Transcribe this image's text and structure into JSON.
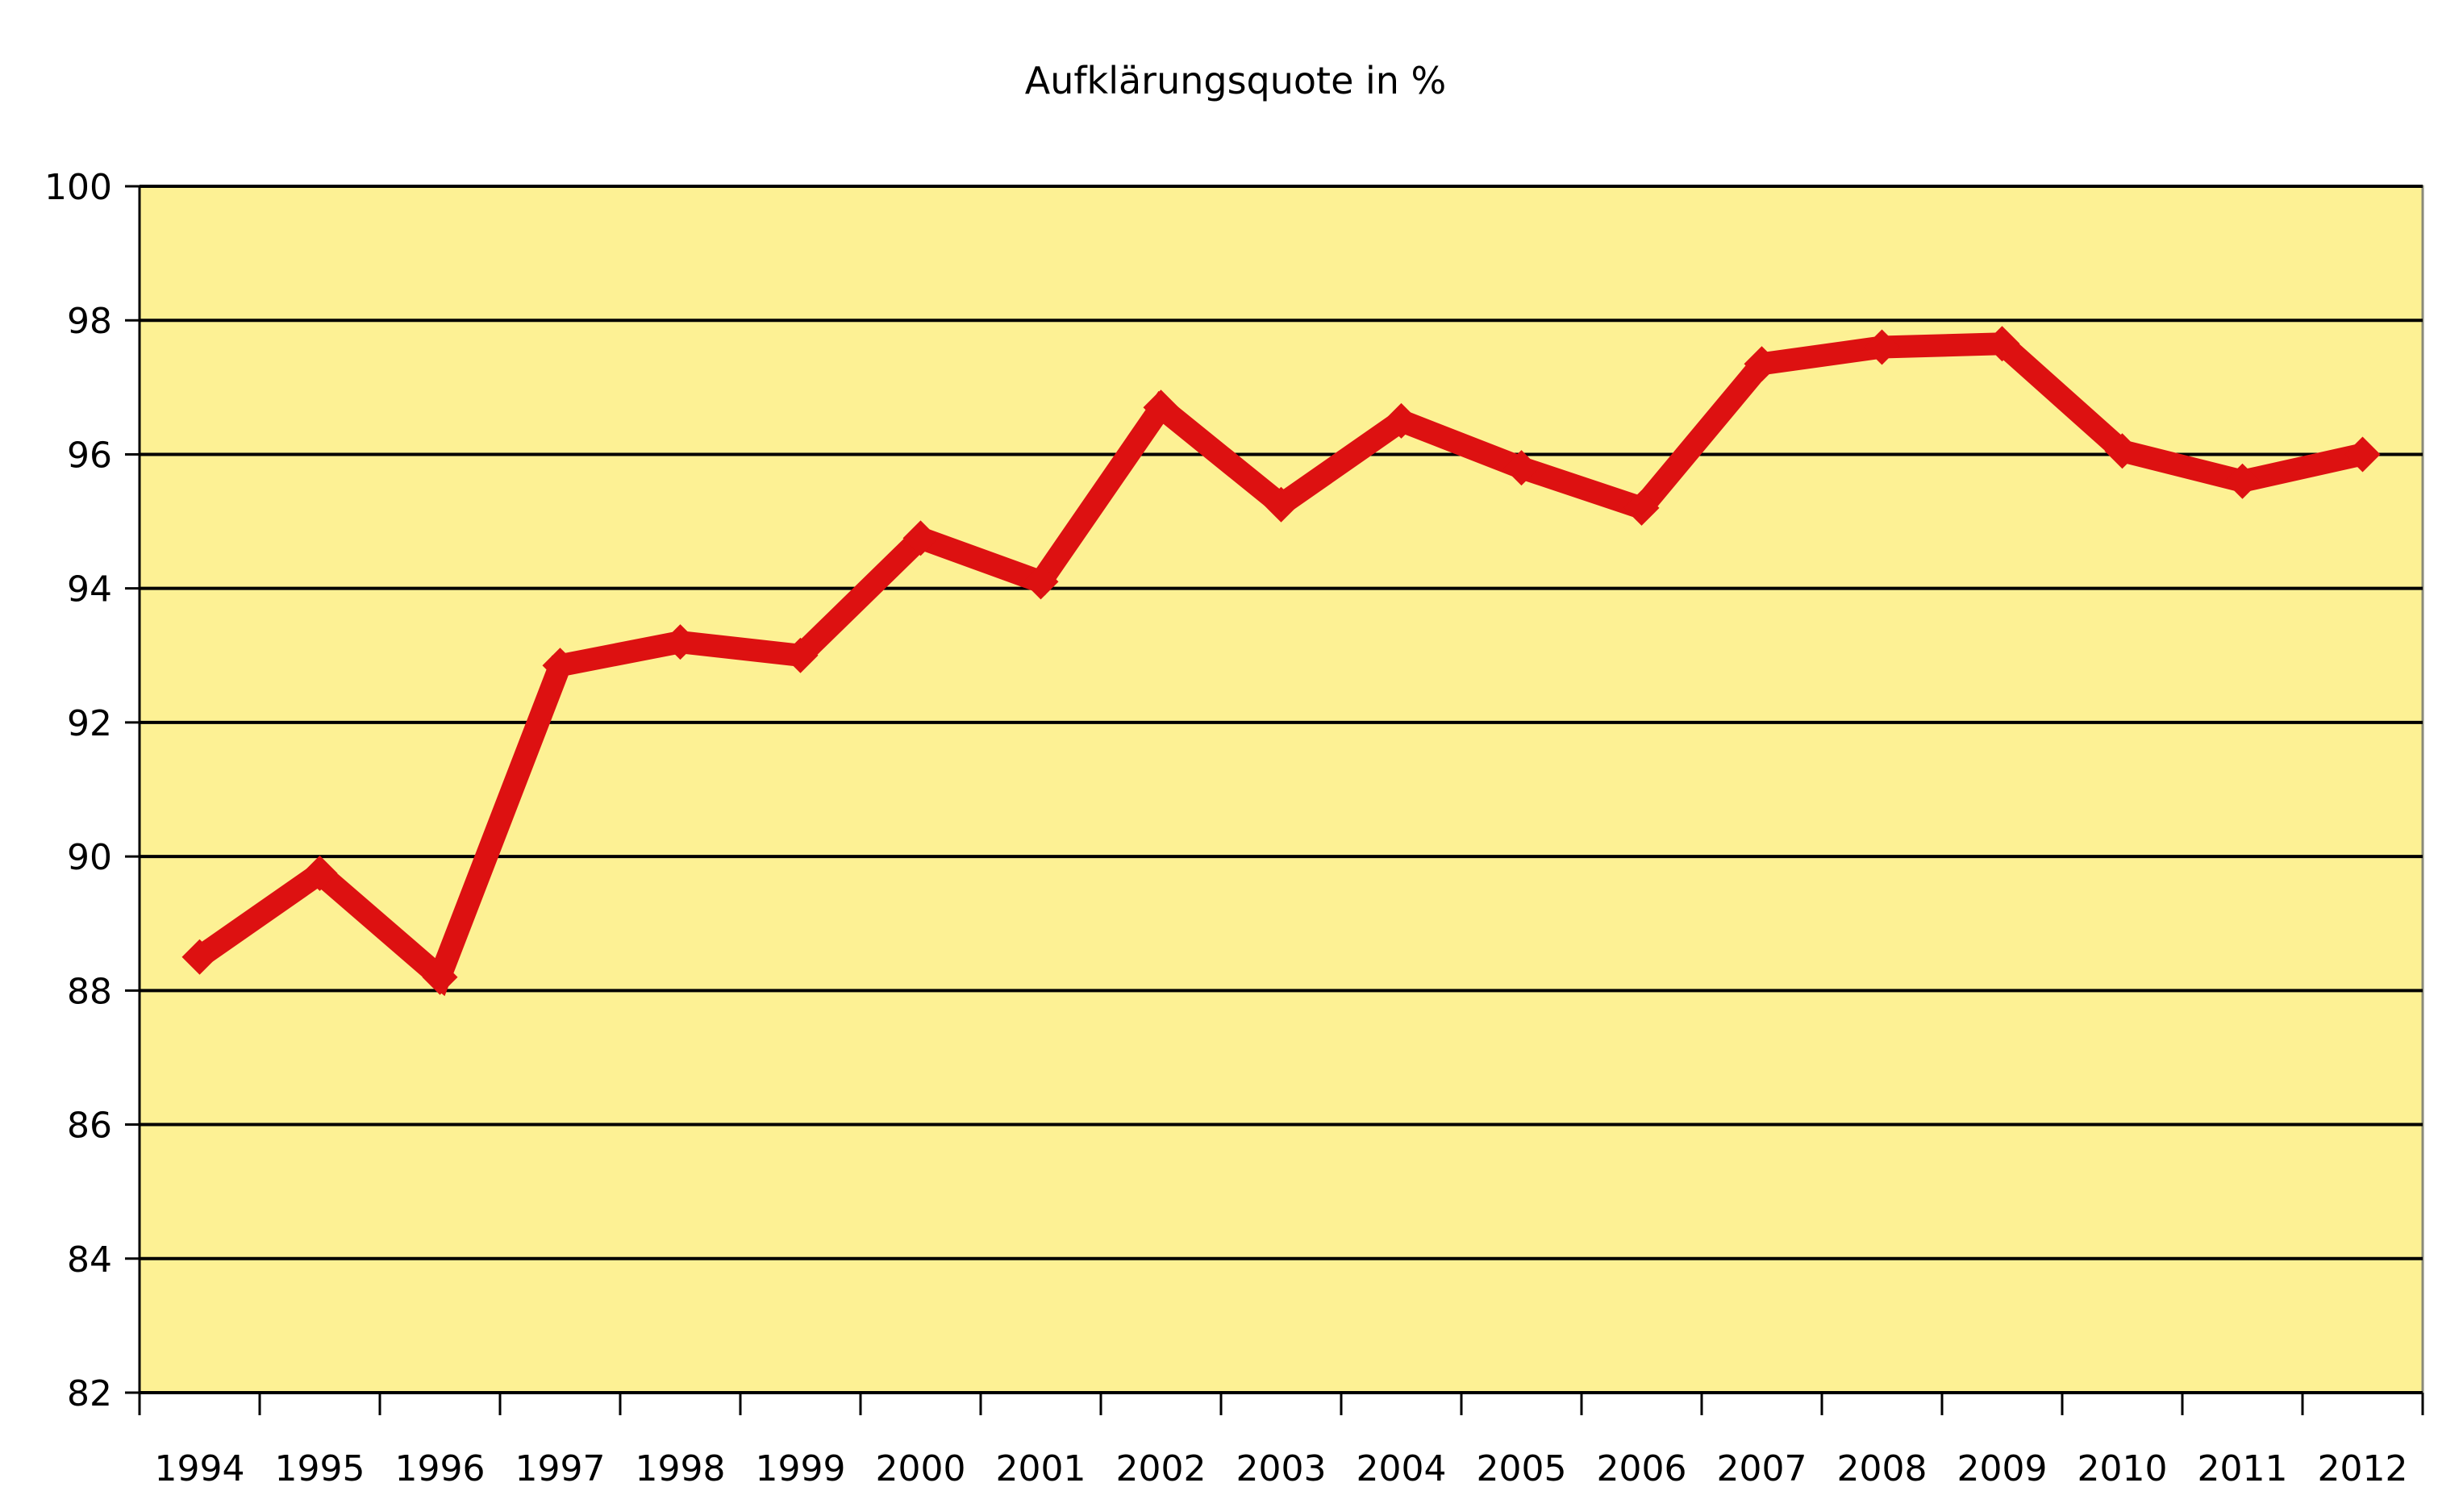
{
  "chart_data": {
    "type": "line",
    "title": "Aufklärungsquote in %",
    "categories": [
      "1994",
      "1995",
      "1996",
      "1997",
      "1998",
      "1999",
      "2000",
      "2001",
      "2002",
      "2003",
      "2004",
      "2005",
      "2006",
      "2007",
      "2008",
      "2009",
      "2010",
      "2011",
      "2012"
    ],
    "values": [
      88.5,
      89.75,
      88.2,
      92.85,
      93.2,
      93.0,
      94.75,
      94.1,
      96.7,
      95.25,
      96.5,
      95.8,
      95.2,
      97.35,
      97.6,
      97.65,
      96.05,
      95.6,
      96.0
    ],
    "yticks": [
      "100",
      "98",
      "96",
      "94",
      "92",
      "90",
      "88",
      "86",
      "84",
      "82"
    ],
    "ylim": [
      82,
      100
    ],
    "ytick_step": 2,
    "xlabel": "",
    "ylabel": "",
    "grid": "horizontal-only",
    "legend": "none",
    "marker": "diamond",
    "colors": {
      "plot_background": "#FDF194",
      "line": "#DD1111",
      "marker": "#DD1111",
      "gridline": "#000000",
      "plot_border": "#8A8A78",
      "axis_line": "#000000",
      "text": "#000000",
      "page_background": "#FFFFFF"
    }
  }
}
